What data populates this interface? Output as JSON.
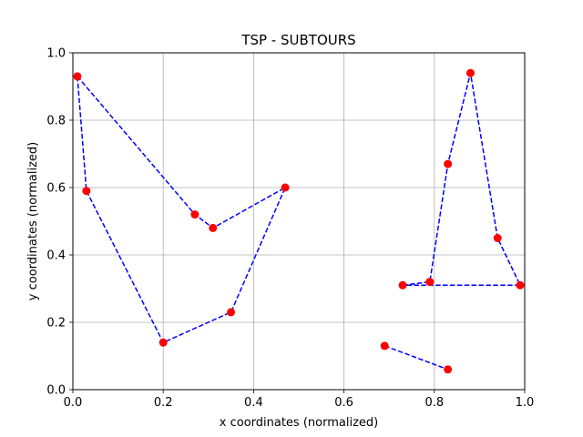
{
  "chart_data": {
    "type": "scatter",
    "title": "TSP - SUBTOURS",
    "xlabel": "x coordinates (normalized)",
    "ylabel": "y coordinates (normalized)",
    "xlim": [
      0,
      1
    ],
    "ylim": [
      0,
      1
    ],
    "x_ticks": [
      0.0,
      0.2,
      0.4,
      0.6,
      0.8,
      1.0
    ],
    "y_ticks": [
      0.0,
      0.2,
      0.4,
      0.6,
      0.8,
      1.0
    ],
    "x_tick_labels": [
      "0.0",
      "0.2",
      "0.4",
      "0.6",
      "0.8",
      "1.0"
    ],
    "y_tick_labels": [
      "0.0",
      "0.2",
      "0.4",
      "0.6",
      "0.8",
      "1.0"
    ],
    "grid": true,
    "point_color": "#ff0000",
    "line_color": "#0000ff",
    "points": [
      {
        "x": 0.01,
        "y": 0.93
      },
      {
        "x": 0.03,
        "y": 0.59
      },
      {
        "x": 0.2,
        "y": 0.14
      },
      {
        "x": 0.35,
        "y": 0.23
      },
      {
        "x": 0.47,
        "y": 0.6
      },
      {
        "x": 0.31,
        "y": 0.48
      },
      {
        "x": 0.27,
        "y": 0.52
      },
      {
        "x": 0.73,
        "y": 0.31
      },
      {
        "x": 0.79,
        "y": 0.32
      },
      {
        "x": 0.83,
        "y": 0.67
      },
      {
        "x": 0.88,
        "y": 0.94
      },
      {
        "x": 0.94,
        "y": 0.45
      },
      {
        "x": 0.99,
        "y": 0.31
      },
      {
        "x": 0.69,
        "y": 0.13
      },
      {
        "x": 0.83,
        "y": 0.06
      }
    ],
    "subtours": [
      [
        {
          "x": 0.01,
          "y": 0.93
        },
        {
          "x": 0.03,
          "y": 0.59
        },
        {
          "x": 0.2,
          "y": 0.14
        },
        {
          "x": 0.35,
          "y": 0.23
        },
        {
          "x": 0.47,
          "y": 0.6
        },
        {
          "x": 0.31,
          "y": 0.48
        },
        {
          "x": 0.27,
          "y": 0.52
        },
        {
          "x": 0.01,
          "y": 0.93
        }
      ],
      [
        {
          "x": 0.73,
          "y": 0.31
        },
        {
          "x": 0.79,
          "y": 0.32
        },
        {
          "x": 0.83,
          "y": 0.67
        },
        {
          "x": 0.88,
          "y": 0.94
        },
        {
          "x": 0.94,
          "y": 0.45
        },
        {
          "x": 0.99,
          "y": 0.31
        },
        {
          "x": 0.73,
          "y": 0.31
        }
      ],
      [
        {
          "x": 0.69,
          "y": 0.13
        },
        {
          "x": 0.83,
          "y": 0.06
        }
      ]
    ]
  }
}
